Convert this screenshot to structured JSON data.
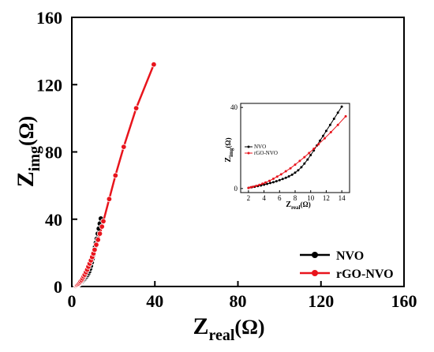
{
  "chart_data": [
    {
      "type": "line",
      "title": "",
      "xlabel": "Z",
      "xlabel_sub": "real",
      "xlabel_unit": "(Ω)",
      "ylabel": "Z",
      "ylabel_sub": "img",
      "ylabel_unit": "(Ω)",
      "xlim": [
        0,
        160
      ],
      "ylim": [
        0,
        160
      ],
      "xticks": [
        0,
        40,
        80,
        120,
        160
      ],
      "yticks": [
        0,
        40,
        80,
        120,
        160
      ],
      "xtick_labels": [
        "0",
        "40",
        "80",
        "120",
        "160"
      ],
      "ytick_labels": [
        "0",
        "40",
        "80",
        "120",
        "160"
      ],
      "grid": false,
      "legend": "bottom-right",
      "series": [
        {
          "name": "NVO",
          "color": "#000000",
          "marker": "circle",
          "x": [
            2.0,
            2.4,
            2.8,
            3.2,
            3.6,
            4.0,
            4.4,
            4.8,
            5.2,
            5.6,
            6.0,
            6.4,
            6.8,
            7.2,
            7.6,
            8.0,
            8.4,
            8.8,
            9.2,
            9.6,
            10.0,
            10.4,
            10.8,
            11.2,
            11.6,
            12.0,
            12.5,
            13.0,
            13.5,
            14.0
          ],
          "y": [
            0.3,
            0.6,
            0.9,
            1.2,
            1.5,
            1.9,
            2.3,
            2.7,
            3.1,
            3.6,
            4.1,
            4.7,
            5.3,
            6.0,
            6.8,
            7.8,
            9.0,
            10.5,
            12.3,
            14.3,
            16.5,
            18.8,
            21.2,
            23.6,
            26.0,
            28.4,
            31.4,
            34.4,
            37.4,
            40.4
          ]
        },
        {
          "name": "rGO-NVO",
          "color": "#e8141c",
          "marker": "circle",
          "x": [
            2.0,
            2.3,
            2.6,
            3.0,
            3.4,
            3.8,
            4.2,
            4.7,
            5.2,
            5.7,
            6.2,
            6.8,
            7.4,
            8.0,
            8.6,
            9.2,
            9.8,
            10.4,
            11.0,
            11.8,
            12.6,
            13.5,
            14.5,
            15.2,
            18.0,
            21.0,
            25.0,
            31.0,
            39.5
          ],
          "y": [
            0.3,
            0.6,
            0.9,
            1.3,
            1.8,
            2.4,
            3.0,
            3.8,
            4.8,
            5.9,
            7.0,
            8.5,
            10.0,
            11.8,
            13.6,
            15.5,
            17.5,
            19.6,
            21.8,
            24.8,
            27.8,
            31.4,
            35.6,
            38.8,
            52.0,
            66.0,
            83.0,
            106.0,
            132.0
          ]
        }
      ]
    },
    {
      "type": "line",
      "title": "",
      "xlabel": "Z",
      "xlabel_sub": "real",
      "xlabel_unit": "(Ω)",
      "ylabel": "Z",
      "ylabel_sub": "img",
      "ylabel_unit": "(Ω)",
      "xlim": [
        1,
        15
      ],
      "ylim": [
        -2,
        42
      ],
      "xticks": [
        2,
        4,
        6,
        8,
        10,
        12,
        14
      ],
      "yticks": [
        0,
        40
      ],
      "xtick_labels": [
        "2",
        "4",
        "6",
        "8",
        "10",
        "12",
        "14"
      ],
      "ytick_labels": [
        "0",
        "40"
      ],
      "grid": false,
      "legend": "top-left",
      "series_ref": [
        "NVO",
        "rGO-NVO"
      ]
    }
  ]
}
